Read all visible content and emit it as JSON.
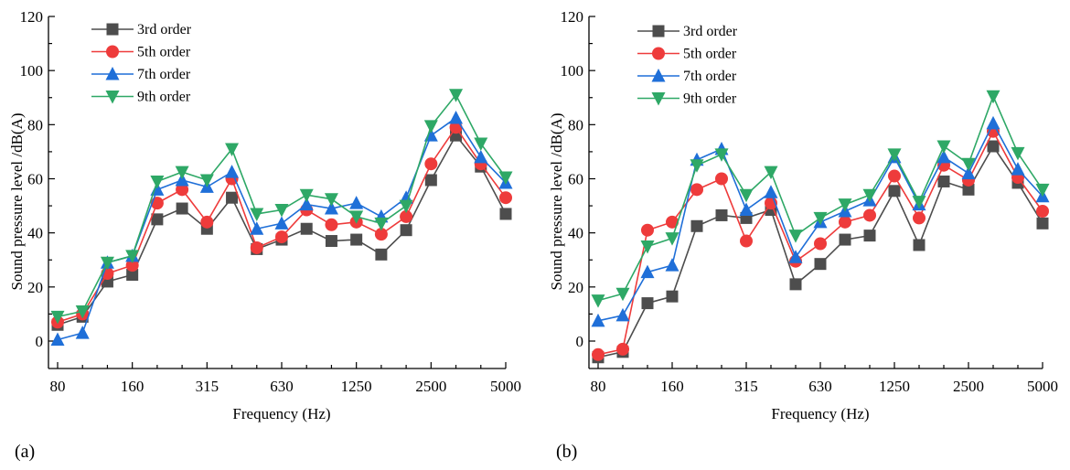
{
  "chart_data": [
    {
      "type": "line",
      "panel_label": "(a)",
      "xlabel": "Frequency (Hz)",
      "ylabel": "Sound pressure level /dB(A)",
      "ylim": [
        -10,
        120
      ],
      "yticks": [
        0,
        20,
        40,
        60,
        80,
        100,
        120
      ],
      "x": [
        80,
        100,
        125,
        160,
        200,
        250,
        315,
        400,
        500,
        630,
        800,
        1000,
        1250,
        1600,
        2000,
        2500,
        3150,
        4000,
        5000
      ],
      "xtick_labels": [
        "80",
        "160",
        "315",
        "630",
        "1250",
        "2500",
        "5000"
      ],
      "xtick_label_values": [
        80,
        160,
        315,
        630,
        1250,
        2500,
        5000
      ],
      "legend_position": "top-left",
      "grid": false,
      "series": [
        {
          "name": "3rd order",
          "color": "#4d4d4d",
          "marker": "square",
          "values": [
            6,
            9,
            22,
            24.5,
            45,
            49,
            41.5,
            53,
            34,
            37.5,
            41.5,
            37,
            37.5,
            32,
            41,
            59.5,
            76,
            64.5,
            47
          ]
        },
        {
          "name": "5th order",
          "color": "#ee3b3b",
          "marker": "circle",
          "values": [
            7,
            10,
            25,
            28,
            51,
            56,
            44,
            60,
            34.5,
            38.5,
            48.5,
            43,
            44,
            39.5,
            46,
            65.5,
            79,
            65.5,
            53
          ]
        },
        {
          "name": "7th order",
          "color": "#1f6fd8",
          "marker": "triangle-up",
          "values": [
            0.5,
            3,
            29,
            31.5,
            56,
            59.5,
            57,
            62.5,
            41.5,
            43.5,
            50.5,
            49,
            51,
            46,
            53,
            76,
            82.5,
            68,
            58.5
          ]
        },
        {
          "name": "9th order",
          "color": "#2ea866",
          "marker": "triangle-down",
          "values": [
            9,
            11,
            29,
            31.5,
            59,
            62.5,
            59.5,
            71,
            47,
            48.5,
            54,
            52.5,
            46,
            43.5,
            50,
            79.5,
            91,
            73,
            60.5
          ]
        }
      ]
    },
    {
      "type": "line",
      "panel_label": "(b)",
      "xlabel": "Frequency (Hz)",
      "ylabel": "Sound pressure level /dB(A)",
      "ylim": [
        -10,
        120
      ],
      "yticks": [
        0,
        20,
        40,
        60,
        80,
        100,
        120
      ],
      "x": [
        80,
        100,
        125,
        160,
        200,
        250,
        315,
        400,
        500,
        630,
        800,
        1000,
        1250,
        1600,
        2000,
        2500,
        3150,
        4000,
        5000
      ],
      "xtick_labels": [
        "80",
        "160",
        "315",
        "630",
        "1250",
        "2500",
        "5000"
      ],
      "xtick_label_values": [
        80,
        160,
        315,
        630,
        1250,
        2500,
        5000
      ],
      "legend_position": "top-left",
      "grid": false,
      "series": [
        {
          "name": "3rd order",
          "color": "#4d4d4d",
          "marker": "square",
          "values": [
            -6,
            -4,
            14,
            16.5,
            42.5,
            46.5,
            45.5,
            48.5,
            21,
            28.5,
            37.5,
            39,
            55.5,
            35.5,
            59,
            56,
            72,
            58.5,
            43.5
          ]
        },
        {
          "name": "5th order",
          "color": "#ee3b3b",
          "marker": "circle",
          "values": [
            -5,
            -3,
            41,
            44,
            56,
            60,
            37,
            51,
            29.5,
            36,
            44,
            46.5,
            61,
            45.5,
            65,
            59.5,
            77.5,
            60.5,
            48
          ]
        },
        {
          "name": "7th order",
          "color": "#1f6fd8",
          "marker": "triangle-up",
          "values": [
            7.5,
            9.5,
            25.5,
            28,
            67,
            71,
            48.5,
            55,
            31,
            44,
            48,
            52,
            68,
            50.5,
            68,
            62,
            80.5,
            63.5,
            53.5
          ]
        },
        {
          "name": "9th order",
          "color": "#2ea866",
          "marker": "triangle-down",
          "values": [
            15,
            17.5,
            35,
            38,
            65,
            69,
            54,
            62.5,
            39,
            45.5,
            50.5,
            54,
            69,
            51.5,
            72,
            65.5,
            90.5,
            69.5,
            56
          ]
        }
      ]
    }
  ]
}
